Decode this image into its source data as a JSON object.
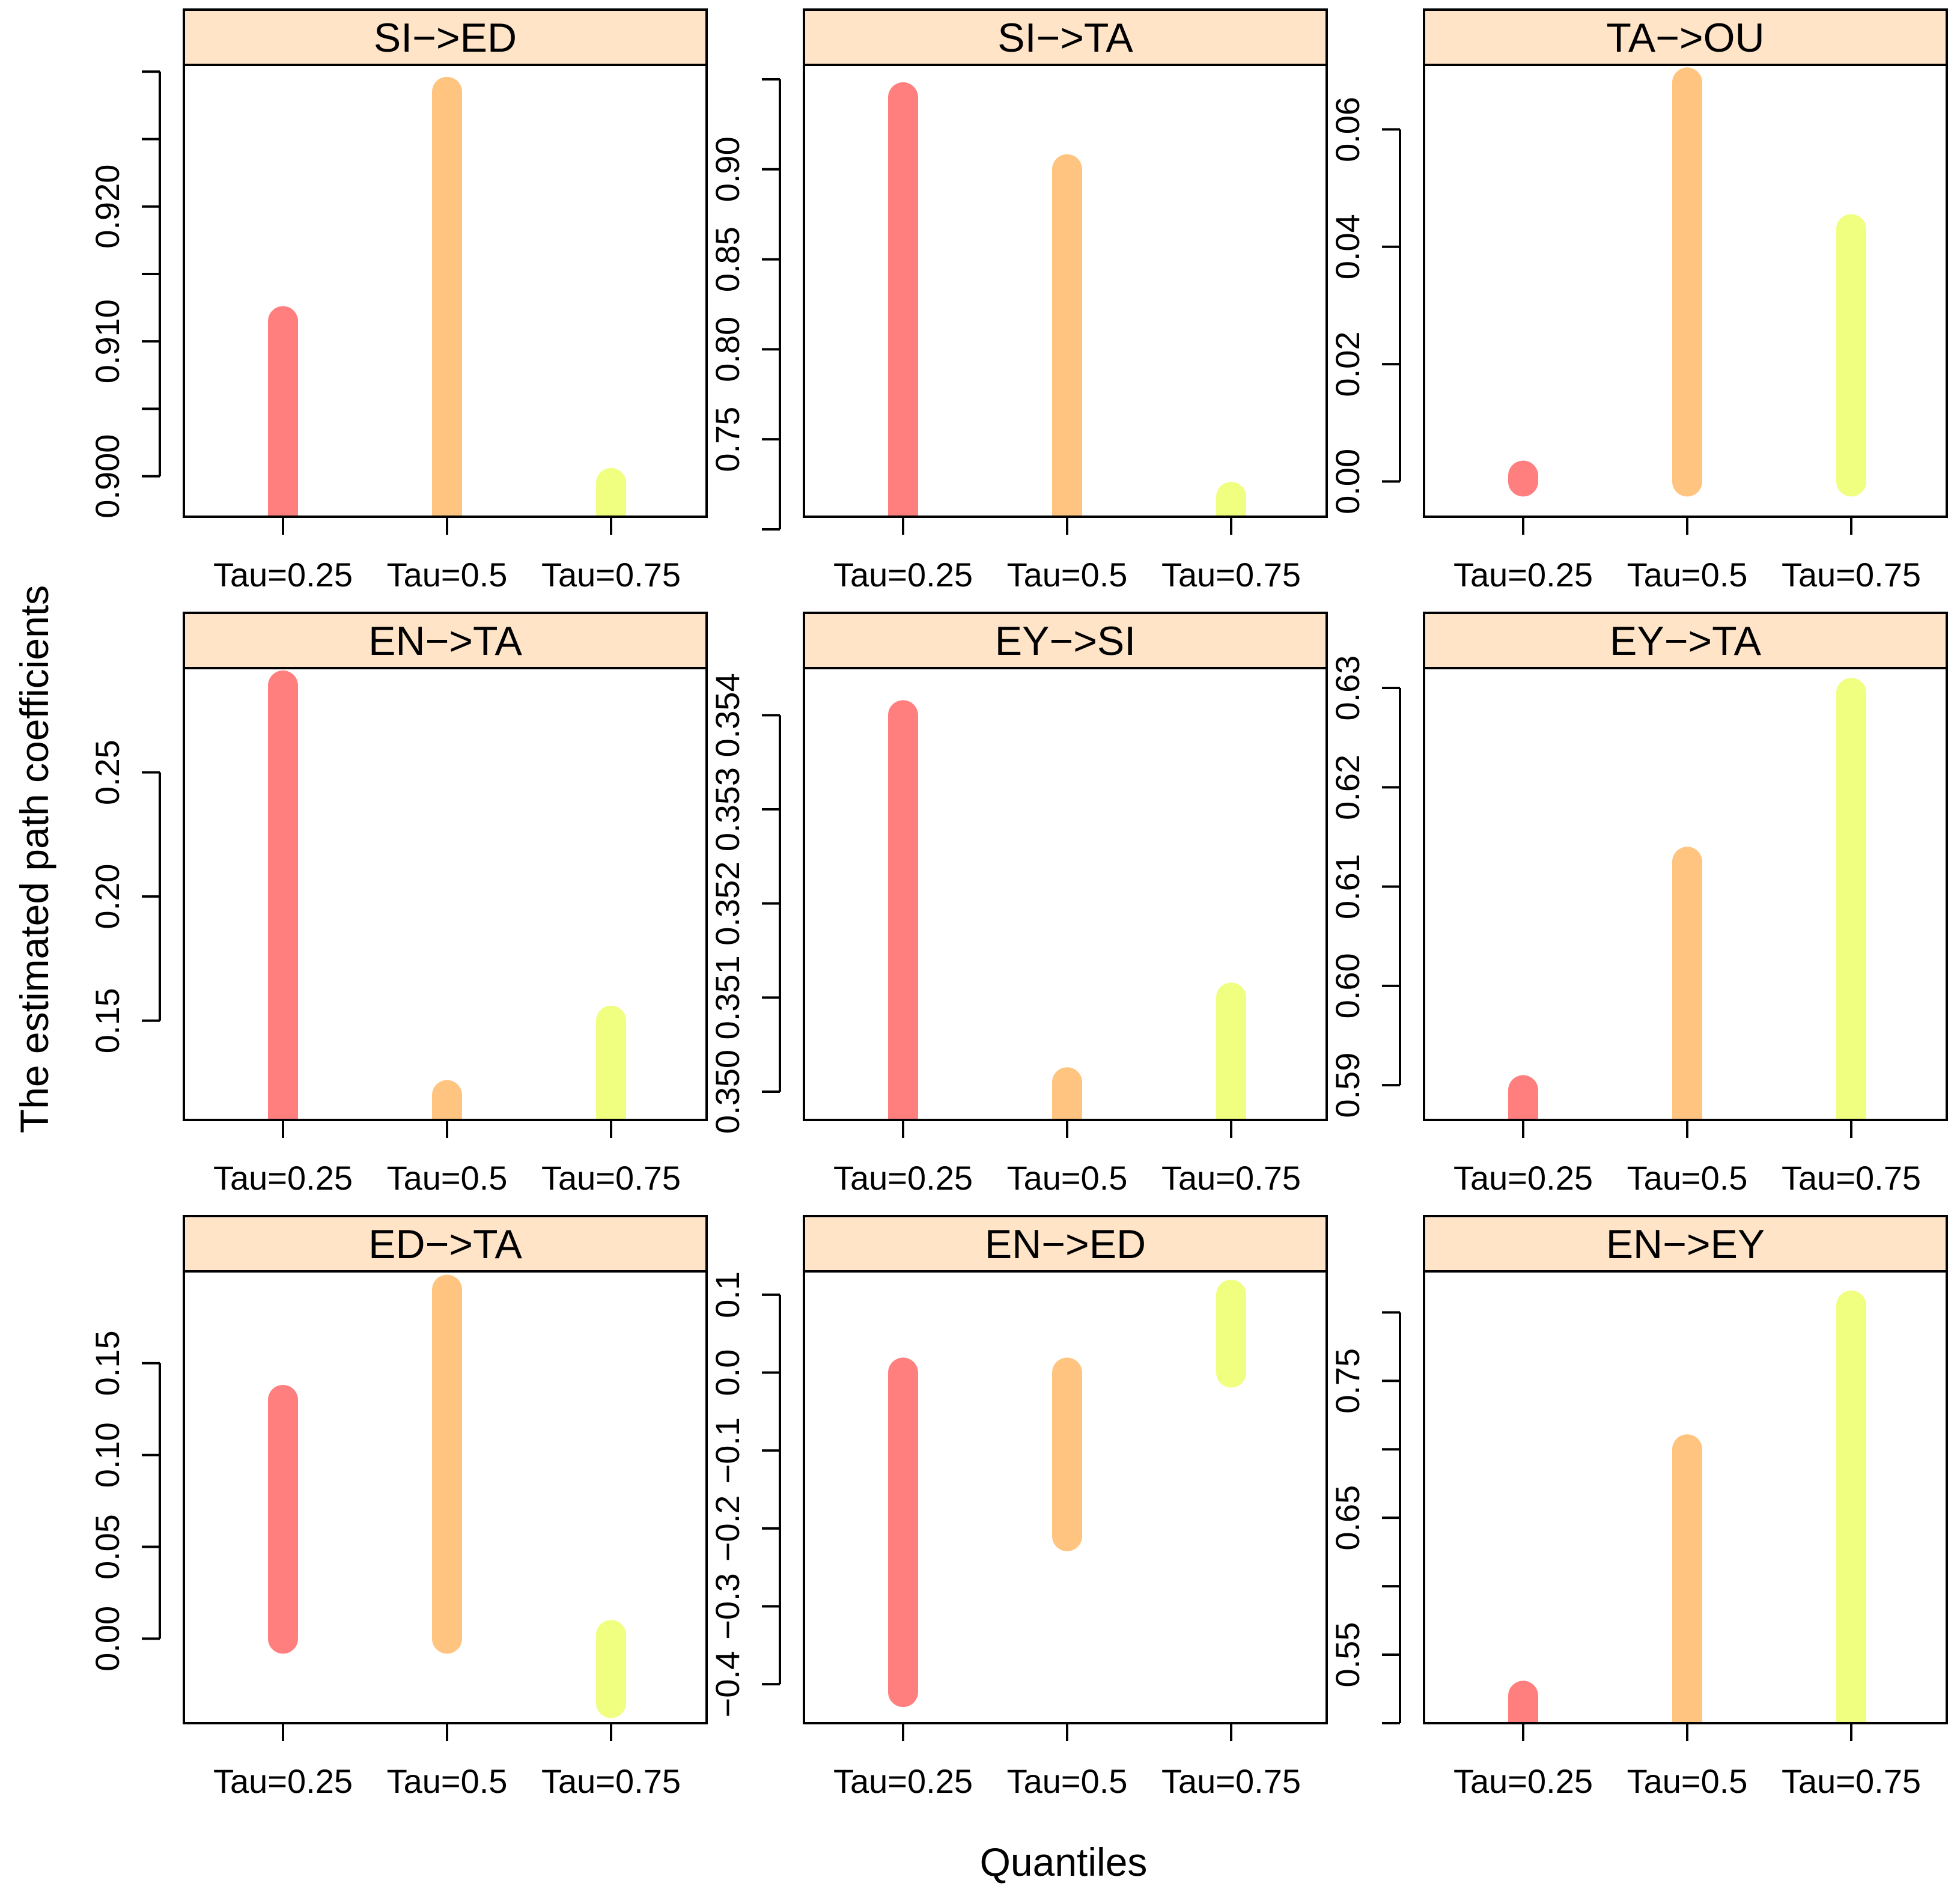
{
  "figure": {
    "ylabel": "The estimated path coefficients",
    "xlabel": "Quantiles",
    "colors": {
      "strip_fill": "#FFE4C8",
      "tau_025": "#FF7F7F",
      "tau_05": "#FFC47F",
      "tau_075": "#F0FF7F"
    }
  },
  "chart_data": [
    {
      "type": "bar",
      "title": "SI−>ED",
      "categories": [
        "Tau=0.25",
        "Tau=0.5",
        "Tau=0.75"
      ],
      "series": [
        {
          "name": "interval",
          "low": [
            0.897,
            0.897,
            0.897
          ],
          "high": [
            0.9115,
            0.9285,
            0.8995
          ]
        }
      ],
      "ylim": [
        0.897,
        0.9305
      ],
      "ticks": [
        0.895,
        0.9,
        0.905,
        0.91,
        0.915,
        0.92,
        0.925,
        0.93
      ],
      "tick_labels": [
        "0.900",
        "0.910",
        "0.920"
      ]
    },
    {
      "type": "bar",
      "title": "SI−>TA",
      "categories": [
        "Tau=0.25",
        "Tau=0.5",
        "Tau=0.75"
      ],
      "series": [
        {
          "name": "interval",
          "low": [
            0.707,
            0.707,
            0.707
          ],
          "high": [
            0.94,
            0.9,
            0.718
          ]
        }
      ],
      "ylim": [
        0.707,
        0.958
      ],
      "ticks": [
        0.7,
        0.75,
        0.8,
        0.85,
        0.9,
        0.95
      ],
      "tick_labels": [
        "0.75",
        "0.80",
        "0.85",
        "0.90"
      ]
    },
    {
      "type": "bar",
      "title": "TA−>OU",
      "categories": [
        "Tau=0.25",
        "Tau=0.5",
        "Tau=0.75"
      ],
      "series": [
        {
          "name": "interval",
          "low": [
            0.0,
            0.0,
            0.0
          ],
          "high": [
            0.001,
            0.068,
            0.043
          ]
        }
      ],
      "ylim": [
        -0.006,
        0.071
      ],
      "ticks": [
        0.0,
        0.02,
        0.04,
        0.06
      ],
      "tick_labels": [
        "0.00",
        "0.02",
        "0.04",
        "0.06"
      ]
    },
    {
      "type": "bar",
      "title": "EN−>TA",
      "categories": [
        "Tau=0.25",
        "Tau=0.5",
        "Tau=0.75"
      ],
      "series": [
        {
          "name": "interval",
          "low": [
            0.11,
            0.11,
            0.11
          ],
          "high": [
            0.285,
            0.12,
            0.15
          ]
        }
      ],
      "ylim": [
        0.11,
        0.292
      ],
      "ticks": [
        0.15,
        0.2,
        0.25
      ],
      "tick_labels": [
        "0.15",
        "0.20",
        "0.25"
      ]
    },
    {
      "type": "bar",
      "title": "EY−>SI",
      "categories": [
        "Tau=0.25",
        "Tau=0.5",
        "Tau=0.75"
      ],
      "series": [
        {
          "name": "interval",
          "low": [
            0.3497,
            0.3497,
            0.3497
          ],
          "high": [
            0.354,
            0.3501,
            0.351
          ]
        }
      ],
      "ylim": [
        0.3497,
        0.3545
      ],
      "ticks": [
        0.35,
        0.351,
        0.352,
        0.353,
        0.354
      ],
      "tick_labels": [
        "0.350",
        "0.351",
        "0.352",
        "0.353",
        "0.354"
      ]
    },
    {
      "type": "bar",
      "title": "EY−>TA",
      "categories": [
        "Tau=0.25",
        "Tau=0.5",
        "Tau=0.75"
      ],
      "series": [
        {
          "name": "interval",
          "low": [
            0.5865,
            0.5865,
            0.5865
          ],
          "high": [
            0.5895,
            0.6125,
            0.6295
          ]
        }
      ],
      "ylim": [
        0.5865,
        0.632
      ],
      "ticks": [
        0.59,
        0.6,
        0.61,
        0.62,
        0.63
      ],
      "tick_labels": [
        "0.59",
        "0.60",
        "0.61",
        "0.62",
        "0.63"
      ]
    },
    {
      "type": "bar",
      "title": "ED−>TA",
      "categories": [
        "Tau=0.25",
        "Tau=0.5",
        "Tau=0.75"
      ],
      "series": [
        {
          "name": "interval",
          "low": [
            0.0,
            0.0,
            -0.035
          ],
          "high": [
            0.13,
            0.19,
            0.002
          ]
        }
      ],
      "ylim": [
        -0.046,
        0.2
      ],
      "ticks": [
        0.0,
        0.05,
        0.1,
        0.15
      ],
      "tick_labels": [
        "0.00",
        "0.05",
        "0.10",
        "0.15"
      ]
    },
    {
      "type": "bar",
      "title": "EN−>ED",
      "categories": [
        "Tau=0.25",
        "Tau=0.5",
        "Tau=0.75"
      ],
      "series": [
        {
          "name": "interval",
          "low": [
            -0.41,
            -0.21,
            0.0
          ],
          "high": [
            0.0,
            0.0,
            0.1
          ]
        }
      ],
      "ylim": [
        -0.45,
        0.13
      ],
      "ticks": [
        -0.4,
        -0.3,
        -0.2,
        -0.1,
        0.0,
        0.1
      ],
      "tick_labels": [
        "−0.4",
        "−0.3",
        "−0.2",
        "−0.1",
        "0.0",
        "0.1"
      ]
    },
    {
      "type": "bar",
      "title": "EN−>EY",
      "categories": [
        "Tau=0.25",
        "Tau=0.5",
        "Tau=0.75"
      ],
      "series": [
        {
          "name": "interval",
          "low": [
            0.5,
            0.5,
            0.5
          ],
          "high": [
            0.52,
            0.7,
            0.805
          ]
        }
      ],
      "ylim": [
        0.5,
        0.83
      ],
      "ticks": [
        0.5,
        0.55,
        0.6,
        0.65,
        0.7,
        0.75,
        0.8
      ],
      "tick_labels": [
        "0.55",
        "0.65",
        "0.75"
      ]
    }
  ]
}
